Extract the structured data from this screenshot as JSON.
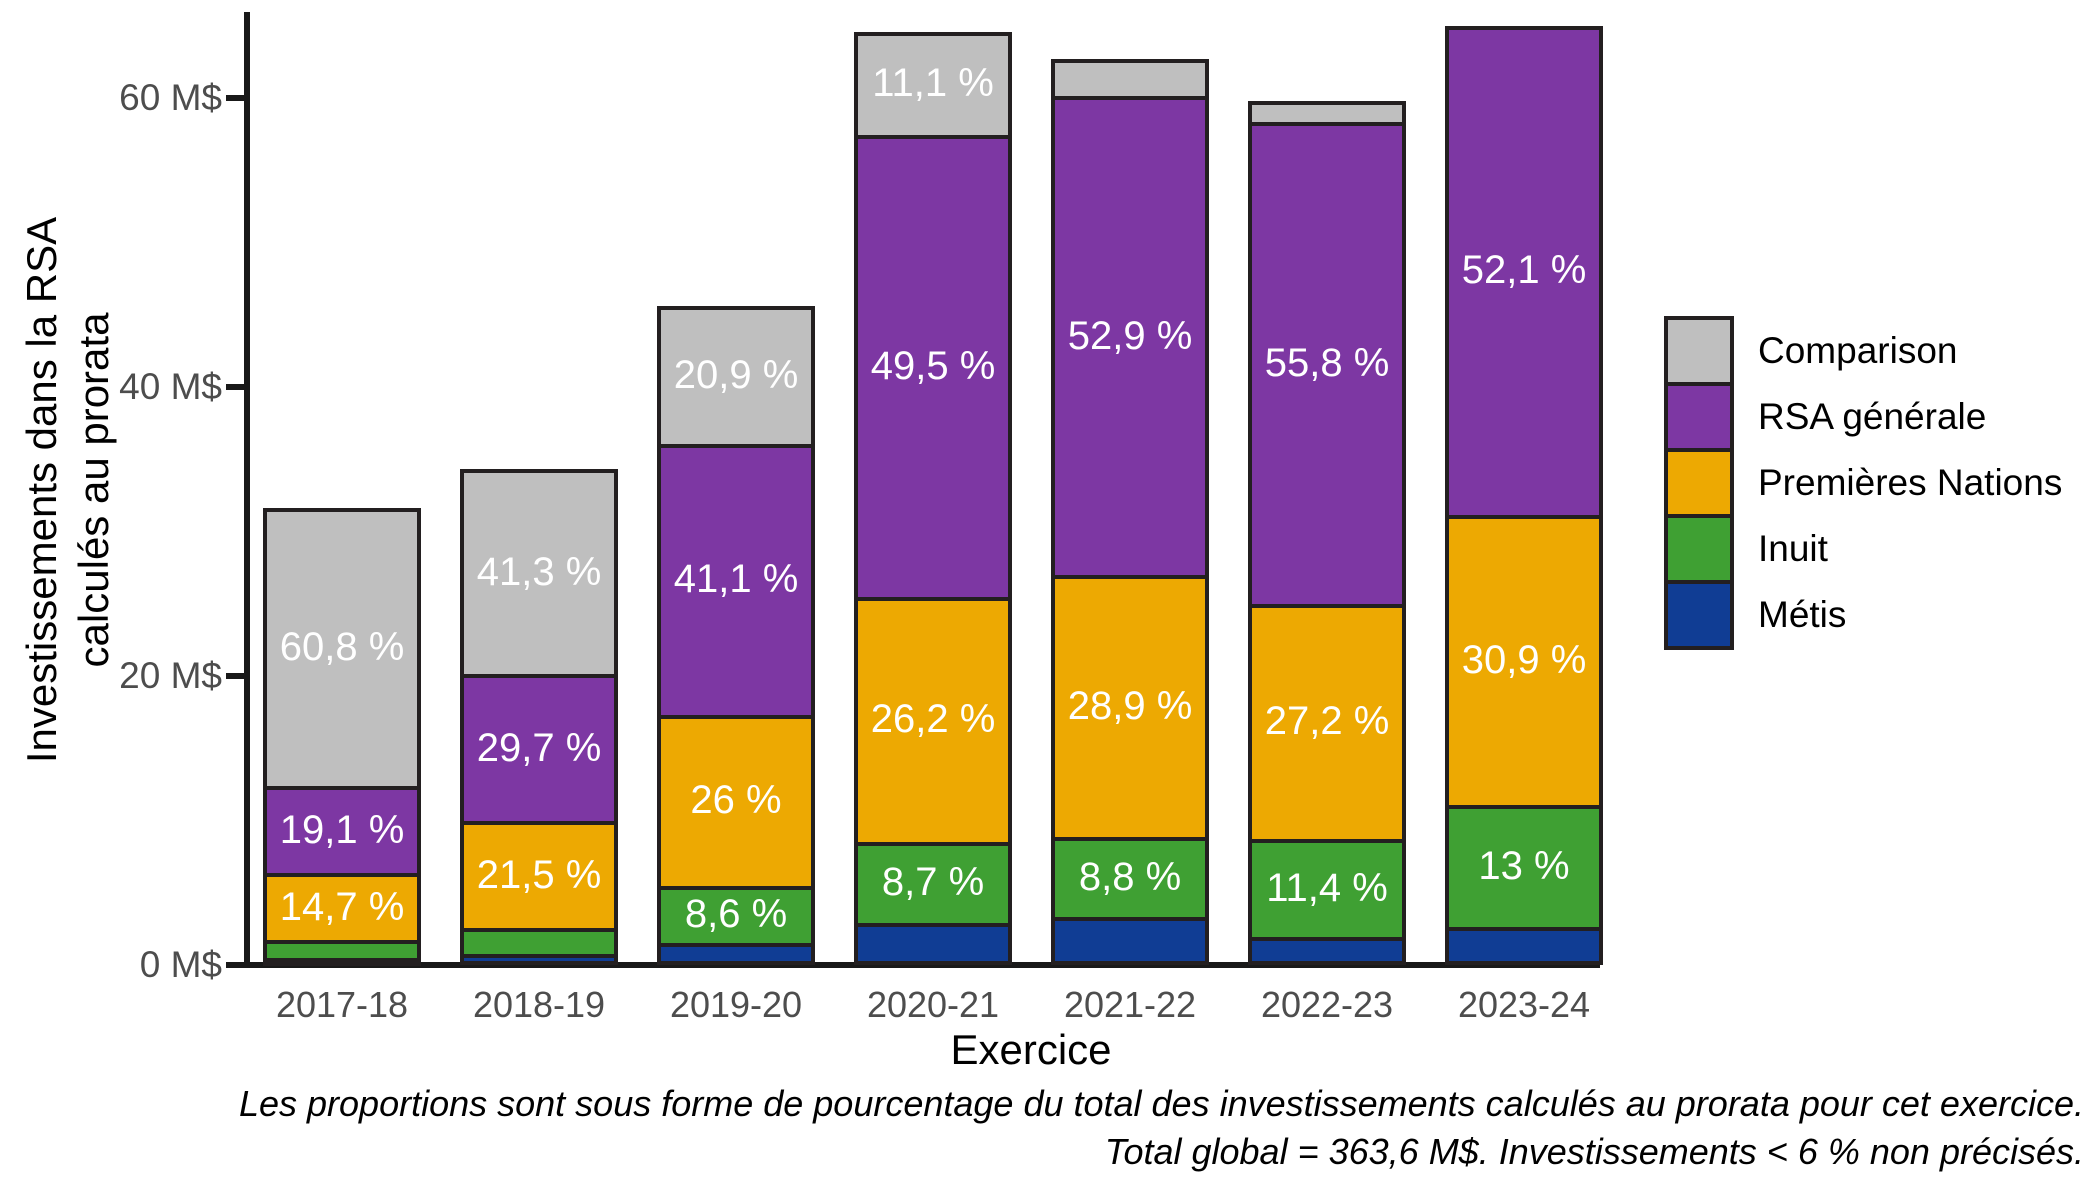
{
  "figure": {
    "y_axis": {
      "title_line1": "Investissements dans la RSA",
      "title_line2": "calculés au prorata",
      "ticks": [
        {
          "value": 0,
          "label": "0 M$"
        },
        {
          "value": 20,
          "label": "20 M$"
        },
        {
          "value": 40,
          "label": "40 M$"
        },
        {
          "value": 60,
          "label": "60 M$"
        }
      ]
    },
    "x_axis": {
      "title": "Exercice"
    },
    "legend": {
      "items": [
        {
          "label": "Comparison",
          "color": "#bfbfbf"
        },
        {
          "label": "RSA générale",
          "color": "#7d37a3"
        },
        {
          "label": "Premières Nations",
          "color": "#eda902"
        },
        {
          "label": "Inuit",
          "color": "#3fa033"
        },
        {
          "label": "Métis",
          "color": "#103d94"
        }
      ]
    },
    "caption": {
      "line1": "Les proportions sont sous forme de pourcentage du total des investissements calculés au prorata pour cet exercice.",
      "line2": "Total global = 363,6 M$. Investissements < 6 % non précisés."
    }
  },
  "chart_data": {
    "type": "bar",
    "stacked": true,
    "unit": "M$",
    "title": "",
    "xlabel": "Exercice",
    "ylabel": "Investissements dans la RSA calculés au prorata",
    "ylim": [
      0,
      66
    ],
    "grid": false,
    "legend_position": "right",
    "categories": [
      "2017-18",
      "2018-19",
      "2019-20",
      "2020-21",
      "2021-22",
      "2022-23",
      "2023-24"
    ],
    "totals_millions": [
      31.6,
      34.3,
      45.6,
      64.6,
      62.7,
      59.8,
      65.0
    ],
    "total_global_millions": 363.6,
    "series": [
      {
        "name": "Métis",
        "color": "#103d94",
        "percent": [
          1.5,
          2.3,
          3.4,
          4.5,
          5.3,
          3.2,
          4.0
        ],
        "labels": [
          "",
          "",
          "",
          "",
          "",
          "",
          ""
        ]
      },
      {
        "name": "Inuit",
        "color": "#3fa033",
        "percent": [
          3.9,
          5.2,
          8.6,
          8.7,
          8.8,
          11.4,
          13.0
        ],
        "labels": [
          "",
          "",
          "8,6 %",
          "8,7 %",
          "8,8 %",
          "11,4 %",
          "13 %"
        ]
      },
      {
        "name": "Premières Nations",
        "color": "#eda902",
        "percent": [
          14.7,
          21.5,
          26.0,
          26.2,
          28.9,
          27.2,
          30.9
        ],
        "labels": [
          "14,7 %",
          "21,5 %",
          "26 %",
          "26,2 %",
          "28,9 %",
          "27,2 %",
          "30,9 %"
        ]
      },
      {
        "name": "RSA générale",
        "color": "#7d37a3",
        "percent": [
          19.1,
          29.7,
          41.1,
          49.5,
          52.9,
          55.8,
          52.1
        ],
        "labels": [
          "19,1 %",
          "29,7 %",
          "41,1 %",
          "49,5 %",
          "52,9 %",
          "55,8 %",
          "52,1 %"
        ]
      },
      {
        "name": "Comparison",
        "color": "#bfbfbf",
        "percent": [
          60.8,
          41.3,
          20.9,
          11.1,
          4.1,
          2.4,
          0.0
        ],
        "labels": [
          "60,8 %",
          "41,3 %",
          "20,9 %",
          "11,1 %",
          "",
          "",
          ""
        ]
      }
    ]
  }
}
